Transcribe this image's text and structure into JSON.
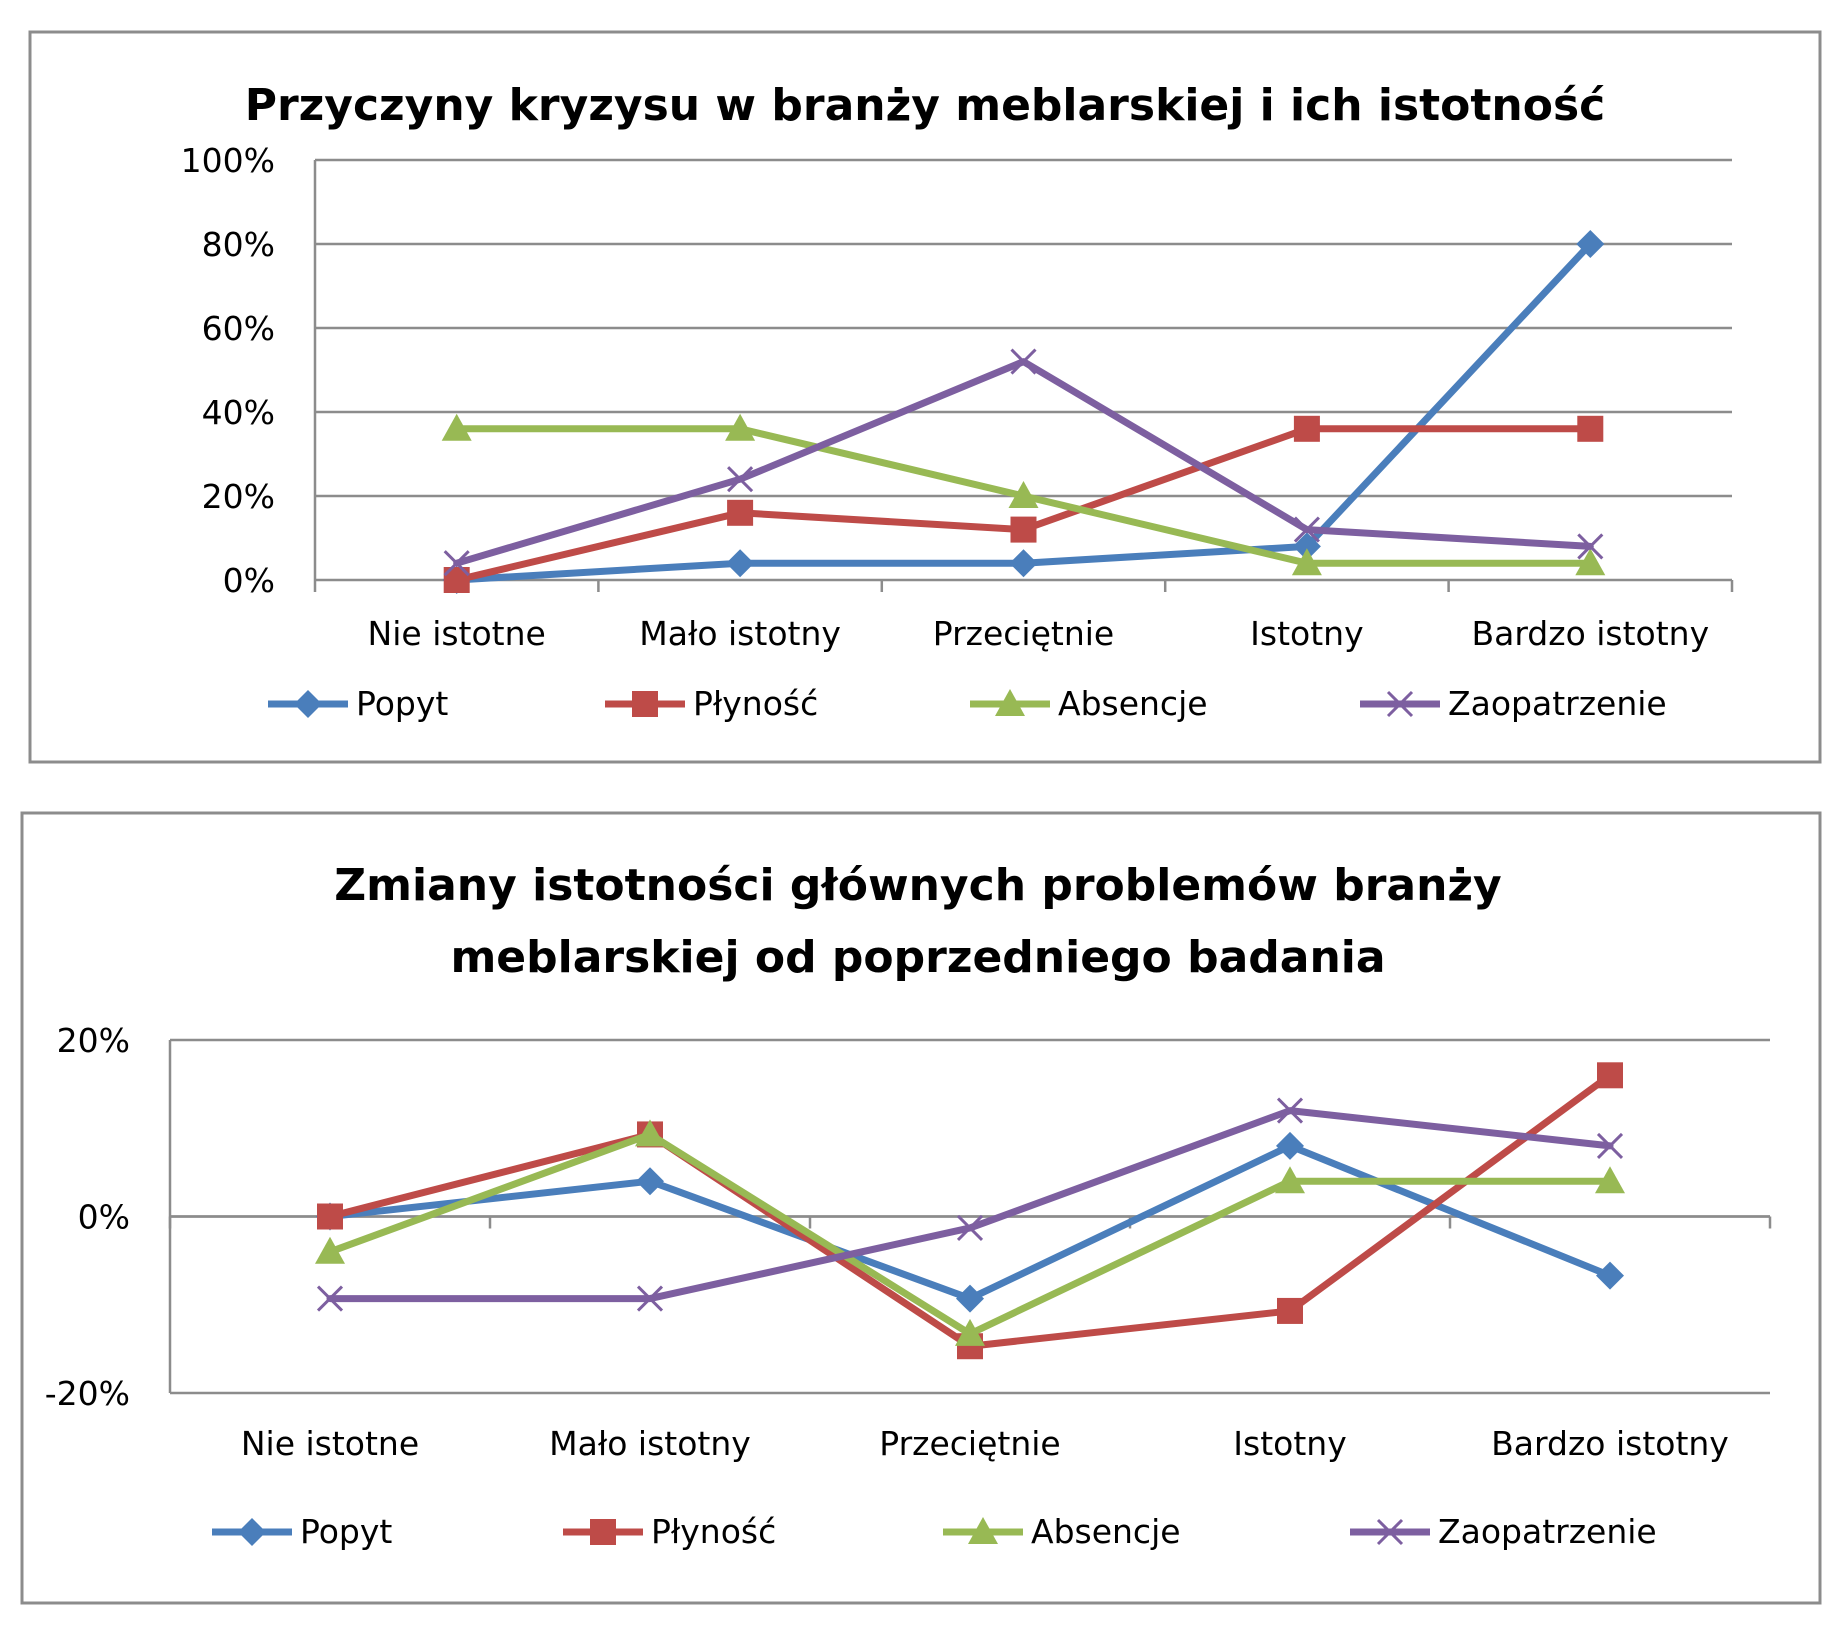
{
  "chart_data": [
    {
      "type": "line",
      "title": "Przyczyny kryzysu w branży meblarskiej i ich istotność",
      "categories": [
        "Nie istotne",
        "Mało istotny",
        "Przeciętnie",
        "Istotny",
        "Bardzo istotny"
      ],
      "ylim": [
        0,
        100
      ],
      "yticks": [
        "0%",
        "20%",
        "40%",
        "60%",
        "80%",
        "100%"
      ],
      "ytick_values": [
        0,
        20,
        40,
        60,
        80,
        100
      ],
      "legend_position": "bottom",
      "series": [
        {
          "name": "Popyt",
          "color": "#4a7ebb",
          "marker": "diamond",
          "values": [
            0,
            4,
            4,
            8,
            80
          ]
        },
        {
          "name": "Płyność",
          "color": "#be4b48",
          "marker": "square",
          "values": [
            0,
            16,
            12,
            36,
            36
          ]
        },
        {
          "name": "Absencje",
          "color": "#98b954",
          "marker": "triangle",
          "values": [
            36,
            36,
            20,
            4,
            4
          ]
        },
        {
          "name": "Zaopatrzenie",
          "color": "#7d5fa0",
          "marker": "x",
          "values": [
            4,
            24,
            52,
            12,
            8
          ]
        }
      ]
    },
    {
      "type": "line",
      "title": "Zmiany istotności  głównych problemów branży meblarskiej od poprzedniego badania",
      "title_lines": [
        "Zmiany istotności  głównych problemów branży",
        "meblarskiej od poprzedniego badania"
      ],
      "categories": [
        "Nie istotne",
        "Mało istotny",
        "Przeciętnie",
        "Istotny",
        "Bardzo istotny"
      ],
      "ylim": [
        -20,
        20
      ],
      "yticks": [
        "-20%",
        "0%",
        "20%"
      ],
      "ytick_values": [
        -20,
        0,
        20
      ],
      "legend_position": "bottom",
      "series": [
        {
          "name": "Popyt",
          "color": "#4a7ebb",
          "marker": "diamond",
          "values": [
            0,
            4,
            -9.3,
            8,
            -6.7
          ]
        },
        {
          "name": "Płyność",
          "color": "#be4b48",
          "marker": "square",
          "values": [
            0,
            9.3,
            -14.7,
            -10.7,
            16
          ]
        },
        {
          "name": "Absencje",
          "color": "#98b954",
          "marker": "triangle",
          "values": [
            -4,
            9.3,
            -13.3,
            4,
            4
          ]
        },
        {
          "name": "Zaopatrzenie",
          "color": "#7d5fa0",
          "marker": "x",
          "values": [
            -9.3,
            -9.3,
            -1.3,
            12,
            8
          ]
        }
      ]
    }
  ]
}
